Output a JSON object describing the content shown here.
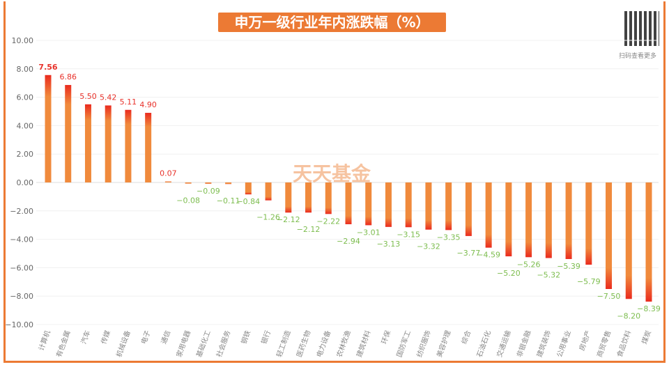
{
  "title": "申万一级行业年内涨跌幅（%）",
  "watermark": "天天基金",
  "qr_caption": "扫码查看更多",
  "colors": {
    "bar": "#f08a3c",
    "bar_end": "#ea2b1f",
    "pos_label": "#e8312a",
    "neg_label": "#7dbd4f",
    "border": "#ec7a34"
  },
  "chart_data": {
    "type": "bar",
    "title": "申万一级行业年内涨跌幅（%）",
    "xlabel": "",
    "ylabel": "",
    "ylim": [
      -10,
      10
    ],
    "yticks": [
      "10.00",
      "8.00",
      "6.00",
      "4.00",
      "2.00",
      "0.00",
      "-2.00",
      "-4.00",
      "-6.00",
      "-8.00",
      "-10.00"
    ],
    "grid": true,
    "categories": [
      "计算机",
      "有色金属",
      "汽车",
      "传媒",
      "机械设备",
      "电子",
      "通信",
      "家用电器",
      "基础化工",
      "社会服务",
      "钢铁",
      "银行",
      "轻工制造",
      "医药生物",
      "电力设备",
      "农林牧渔",
      "建筑材料",
      "环保",
      "国防军工",
      "纺织服饰",
      "美容护理",
      "综合",
      "石油石化",
      "交通运输",
      "非银金融",
      "建筑装饰",
      "公用事业",
      "房地产",
      "商贸零售",
      "食品饮料",
      "煤炭"
    ],
    "values": [
      7.56,
      6.86,
      5.5,
      5.42,
      5.11,
      4.9,
      0.07,
      -0.08,
      -0.09,
      -0.11,
      -0.84,
      -1.26,
      -2.12,
      -2.12,
      -2.22,
      -2.94,
      -3.01,
      -3.13,
      -3.15,
      -3.32,
      -3.35,
      -3.77,
      -4.59,
      -5.2,
      -5.26,
      -5.32,
      -5.39,
      -5.79,
      -7.5,
      -8.2,
      -8.39
    ]
  }
}
